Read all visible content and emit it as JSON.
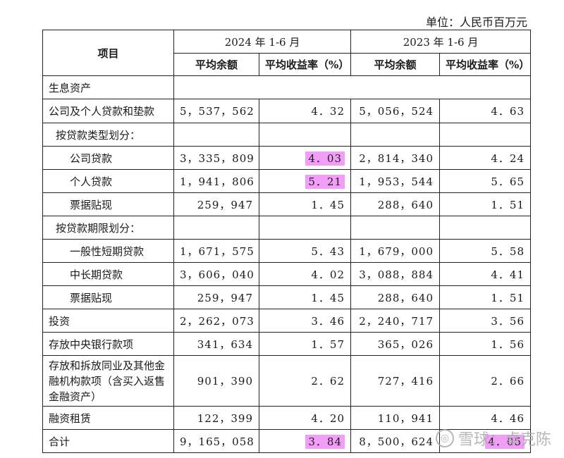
{
  "unit_label": "单位：人民币百万元",
  "header": {
    "item_label": "项目",
    "period_2024": "2024 年 1-6 月",
    "period_2023": "2023 年 1-6 月",
    "avg_balance": "平均余额",
    "avg_yield": "平均收益率（%）"
  },
  "rows": [
    {
      "label": "生息资产",
      "b24": "",
      "y24": "",
      "b23": "",
      "y23": ""
    },
    {
      "label": "公司及个人贷款和垫款",
      "b24": "5，537，562",
      "y24": "4．32",
      "b23": "5，056，524",
      "y23": "4．63"
    },
    {
      "label": "按贷款类型划分：",
      "b24": "",
      "y24": "",
      "b23": "",
      "y23": ""
    },
    {
      "label": "公司贷款",
      "b24": "3，335，809",
      "y24": "4．03",
      "b23": "2，814，340",
      "y23": "4．24"
    },
    {
      "label": "个人贷款",
      "b24": "1，941，806",
      "y24": "5．21",
      "b23": "1，953，544",
      "y23": "5．65"
    },
    {
      "label": "票据贴现",
      "b24": "259，947",
      "y24": "1．45",
      "b23": "288，640",
      "y23": "1．51"
    },
    {
      "label": "按贷款期限划分：",
      "b24": "",
      "y24": "",
      "b23": "",
      "y23": ""
    },
    {
      "label": "一般性短期贷款",
      "b24": "1，671，575",
      "y24": "5．43",
      "b23": "1，679，000",
      "y23": "5．58"
    },
    {
      "label": "中长期贷款",
      "b24": "3，606，040",
      "y24": "4．02",
      "b23": "3，088，884",
      "y23": "4．41"
    },
    {
      "label": "票据贴现",
      "b24": "259，947",
      "y24": "1．45",
      "b23": "288，640",
      "y23": "1．51"
    },
    {
      "label": "投资",
      "b24": "2，262，073",
      "y24": "3．46",
      "b23": "2，240，717",
      "y23": "3．56"
    },
    {
      "label": "存放中央银行款项",
      "b24": "341，634",
      "y24": "1．57",
      "b23": "365，026",
      "y23": "1．56"
    },
    {
      "label": "存放和拆放同业及其他金融机构款项（含买入返售金融资产）",
      "b24": "901，390",
      "y24": "2．62",
      "b23": "727，416",
      "y23": "2．66"
    },
    {
      "label": "融资租赁",
      "b24": "122，399",
      "y24": "4．20",
      "b23": "110，941",
      "y23": "4．46"
    },
    {
      "label": "合计",
      "b24": "9，165，058",
      "y24": "3．84",
      "b23": "8，500，624",
      "y23": "4．05"
    }
  ],
  "highlight_color": "#f29df7",
  "watermark": {
    "icon": "snowball-logo-icon",
    "text": "雪球：卓克陈"
  }
}
